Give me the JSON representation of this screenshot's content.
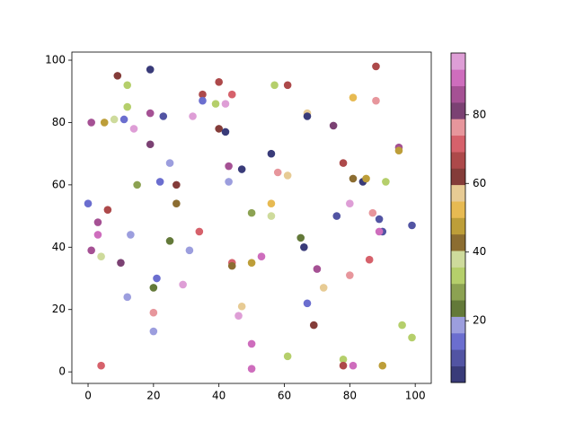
{
  "chart_data": {
    "type": "scatter",
    "x": [
      19,
      9,
      12,
      40,
      35,
      44,
      57,
      61,
      88,
      81,
      88,
      35,
      42,
      39,
      12,
      1,
      5,
      8,
      11,
      19,
      23,
      32,
      14,
      40,
      42,
      67,
      67,
      75,
      19,
      95,
      95,
      25,
      43,
      47,
      56,
      58,
      61,
      78,
      81,
      84,
      85,
      91,
      15,
      22,
      27,
      43,
      0,
      6,
      3,
      27,
      56,
      50,
      56,
      76,
      80,
      87,
      89,
      99,
      90,
      89,
      3,
      13,
      25,
      34,
      65,
      66,
      1,
      4,
      10,
      31,
      44,
      44,
      50,
      53,
      86,
      70,
      21,
      20,
      12,
      29,
      72,
      80,
      67,
      47,
      20,
      46,
      69,
      96,
      20,
      99,
      50,
      61,
      78,
      4,
      78,
      81,
      90,
      50
    ],
    "y": [
      97,
      95,
      92,
      93,
      89,
      89,
      92,
      92,
      98,
      88,
      87,
      87,
      86,
      86,
      85,
      80,
      80,
      81,
      81,
      83,
      82,
      82,
      78,
      78,
      77,
      83,
      82,
      79,
      73,
      72,
      71,
      67,
      66,
      65,
      70,
      64,
      63,
      67,
      62,
      61,
      62,
      61,
      60,
      61,
      60,
      61,
      54,
      52,
      48,
      54,
      54,
      51,
      50,
      50,
      54,
      51,
      49,
      47,
      45,
      45,
      44,
      44,
      42,
      45,
      43,
      40,
      39,
      37,
      35,
      39,
      35,
      34,
      35,
      37,
      36,
      33,
      30,
      27,
      24,
      28,
      27,
      31,
      22,
      21,
      19,
      18,
      15,
      15,
      13,
      11,
      9,
      5,
      4,
      2,
      2,
      2,
      2,
      1
    ],
    "c": [
      4,
      62,
      33,
      67,
      66,
      71,
      33,
      66,
      67,
      52,
      76,
      14,
      95,
      33,
      33,
      86,
      47,
      38,
      14,
      86,
      9,
      95,
      95,
      62,
      4,
      57,
      4,
      81,
      81,
      86,
      47,
      19,
      86,
      4,
      4,
      76,
      57,
      66,
      42,
      4,
      47,
      33,
      28,
      14,
      62,
      19,
      14,
      66,
      86,
      42,
      52,
      28,
      38,
      9,
      95,
      76,
      9,
      9,
      9,
      90,
      90,
      19,
      23,
      71,
      23,
      4,
      86,
      38,
      81,
      19,
      71,
      42,
      47,
      90,
      71,
      86,
      14,
      23,
      19,
      95,
      57,
      76,
      14,
      57,
      76,
      95,
      62,
      33,
      19,
      33,
      90,
      33,
      33,
      71,
      66,
      90,
      47,
      90
    ],
    "colormap": [
      "#393b79",
      "#5254a3",
      "#6b6ecf",
      "#9c9ede",
      "#637939",
      "#8ca252",
      "#b5cf6b",
      "#cedb9c",
      "#8c6d31",
      "#bd9e39",
      "#e7ba52",
      "#e7cb94",
      "#843c39",
      "#ad494a",
      "#d6616b",
      "#e7969c",
      "#7b4173",
      "#a55194",
      "#ce6dbd",
      "#de9ed6"
    ],
    "clim": [
      2,
      98
    ],
    "cticks": [
      20,
      40,
      60,
      80
    ],
    "xlim": [
      -4.95,
      104.9
    ],
    "ylim": [
      -3.7,
      102.6
    ],
    "xticks": [
      0,
      20,
      40,
      60,
      80,
      100
    ],
    "yticks": [
      0,
      20,
      40,
      60,
      80,
      100
    ]
  }
}
